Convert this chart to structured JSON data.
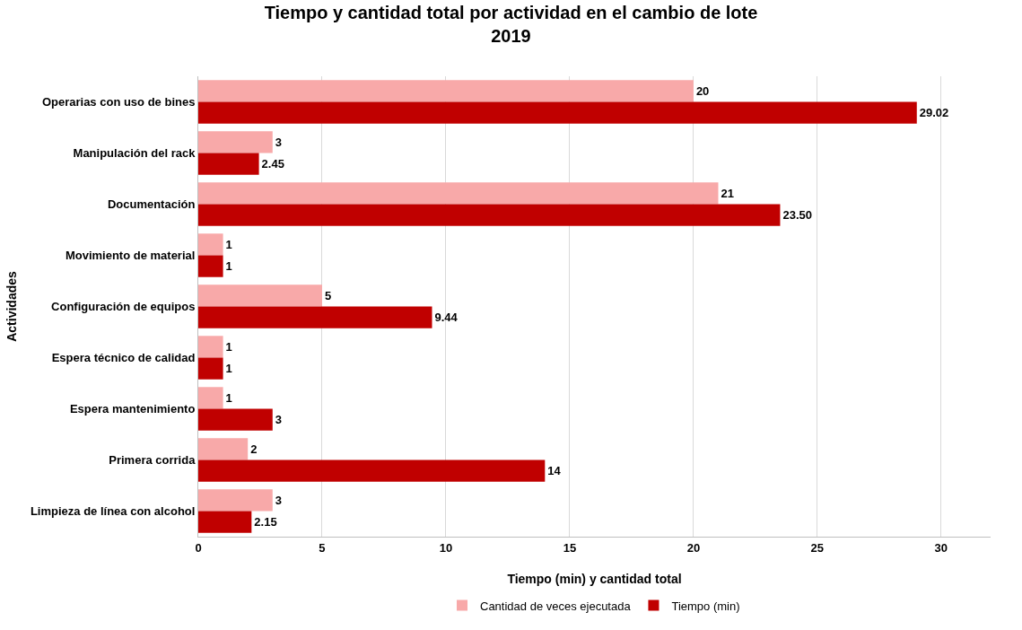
{
  "chart_data": {
    "type": "bar",
    "orientation": "horizontal",
    "title": "Tiempo y cantidad total por actividad en el cambio de lote\n2019",
    "xlabel": "Tiempo (min) y cantidad total",
    "ylabel": "Actividades",
    "categories": [
      "Operarias con uso de bines",
      "Manipulación del rack",
      "Documentación",
      "Movimiento de material",
      "Configuración de equipos",
      "Espera técnico de calidad",
      "Espera mantenimiento",
      "Primera corrida",
      "Limpieza de línea con alcohol"
    ],
    "series": [
      {
        "name": "Cantidad de veces ejecutada",
        "color": "#f8a9a9",
        "values": [
          20,
          3,
          21,
          1,
          5,
          1,
          1,
          2,
          3
        ],
        "value_labels": [
          "20",
          "3",
          "21",
          "1",
          "5",
          "1",
          "1",
          "2",
          "3"
        ]
      },
      {
        "name": "Tiempo (min)",
        "color": "#c00000",
        "values": [
          29.02,
          2.45,
          23.5,
          1,
          9.44,
          1,
          3,
          14,
          2.15
        ],
        "value_labels": [
          "29.02",
          "2.45",
          "23.50",
          "1",
          "9.44",
          "1",
          "3",
          "14",
          "2.15"
        ]
      }
    ],
    "xlim": [
      0,
      32
    ],
    "xticks": [
      0,
      5,
      10,
      15,
      20,
      25,
      30
    ],
    "grid": "x",
    "legend": "bottom"
  }
}
